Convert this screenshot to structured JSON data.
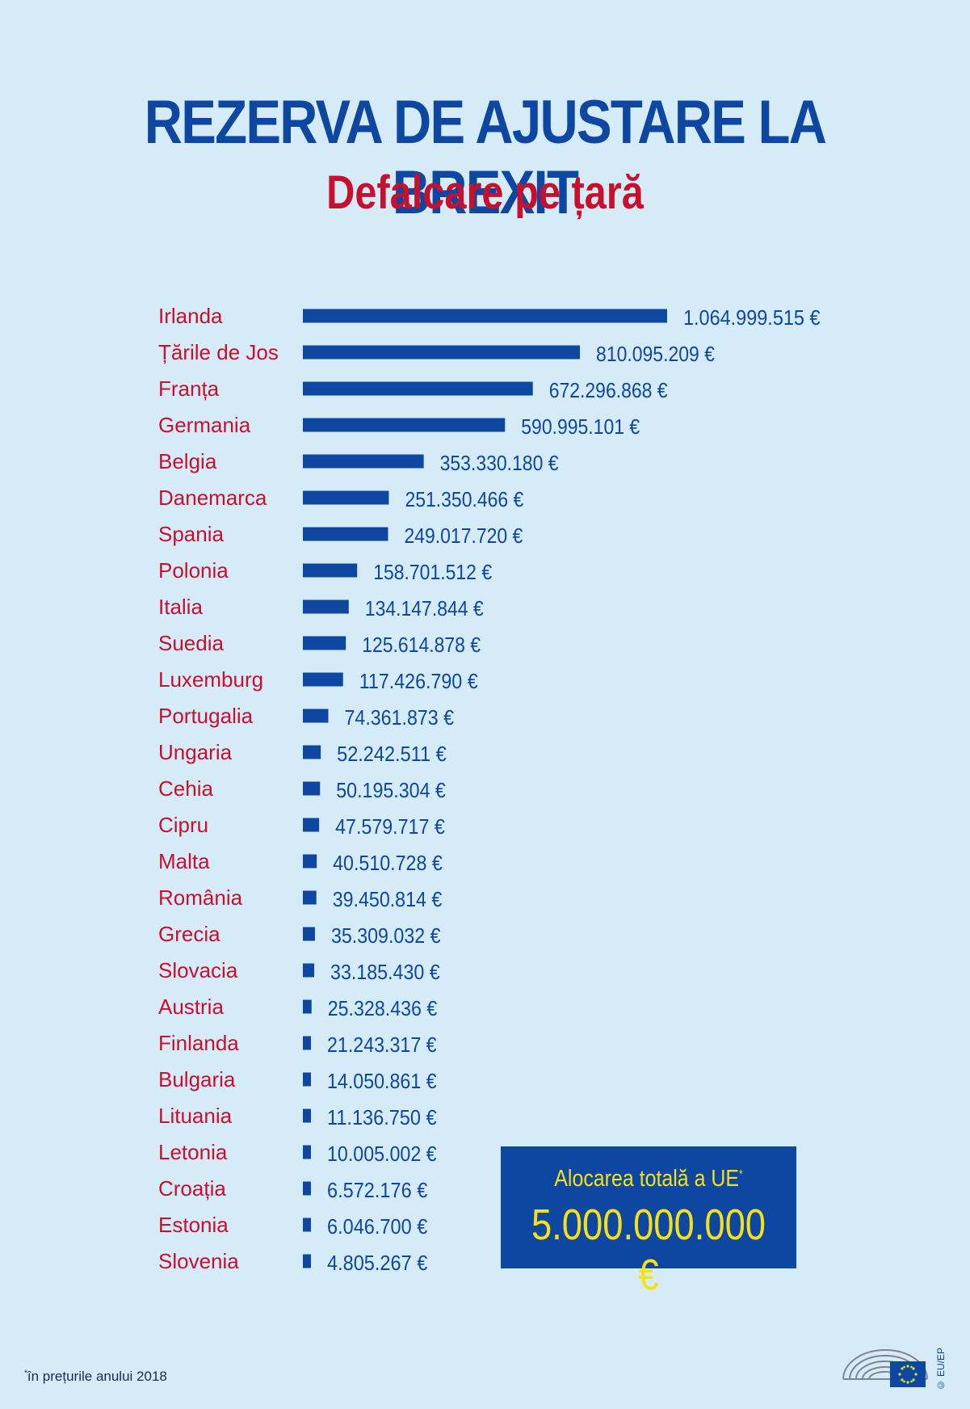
{
  "header": {
    "title": "REZERVA DE AJUSTARE LA BREXIT",
    "subtitle": "Defalcare pe țară"
  },
  "colors": {
    "bar": "#0e47a1",
    "country_label": "#c8102e",
    "value_label": "#0e47a1",
    "background": "#d6ebf8",
    "total_text": "#f5e11a"
  },
  "chart_data": {
    "type": "bar",
    "orientation": "horizontal",
    "title": "REZERVA DE AJUSTARE LA BREXIT",
    "subtitle": "Defalcare pe țară",
    "xlabel": "",
    "ylabel": "",
    "grid": false,
    "categories": [
      "Irlanda",
      "Țările de Jos",
      "Franța",
      "Germania",
      "Belgia",
      "Danemarca",
      "Spania",
      "Polonia",
      "Italia",
      "Suedia",
      "Luxemburg",
      "Portugalia",
      "Ungaria",
      "Cehia",
      "Cipru",
      "Malta",
      "România",
      "Grecia",
      "Slovacia",
      "Austria",
      "Finlanda",
      "Bulgaria",
      "Lituania",
      "Letonia",
      "Croația",
      "Estonia",
      "Slovenia"
    ],
    "values": [
      1064999515,
      810095209,
      672296868,
      590995101,
      353330180,
      251350466,
      249017720,
      158701512,
      134147844,
      125614878,
      117426790,
      74361873,
      52242511,
      50195304,
      47579717,
      40510728,
      39450814,
      35309032,
      33185430,
      25328436,
      21243317,
      14050861,
      11136750,
      10005002,
      6572176,
      6046700,
      4805267
    ],
    "value_labels": [
      "1.064.999.515 €",
      "810.095.209 €",
      "672.296.868 €",
      "590.995.101 €",
      "353.330.180 €",
      "251.350.466 €",
      "249.017.720 €",
      "158.701.512 €",
      "134.147.844 €",
      "125.614.878 €",
      "117.426.790 €",
      "74.361.873 €",
      "52.242.511 €",
      "50.195.304 €",
      "47.579.717 €",
      "40.510.728 €",
      "39.450.814 €",
      "35.309.032 €",
      "33.185.430 €",
      "25.328.436 €",
      "21.243.317 €",
      "14.050.861 €",
      "11.136.750 €",
      "10.005.002 €",
      "6.572.176 €",
      "6.046.700 €",
      "4.805.267 €"
    ]
  },
  "total": {
    "label": "Alocarea totală a UE",
    "marker": "*",
    "value": "5.000.000.000 €"
  },
  "footnote": {
    "marker": "*",
    "text": "în prețurile anului 2018"
  },
  "credit": "© EU/EP",
  "logo": {
    "icon": "european-parliament-logo-icon"
  }
}
